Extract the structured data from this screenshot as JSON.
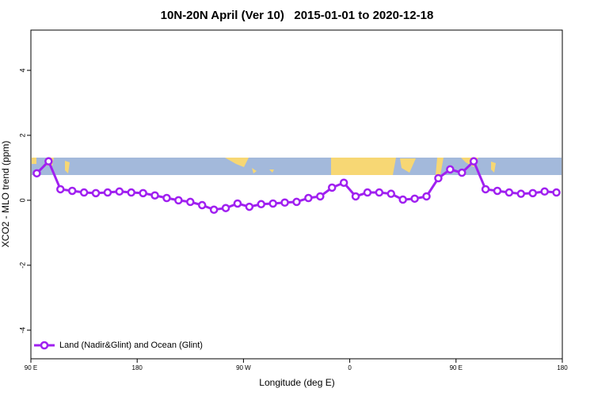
{
  "chart_data": {
    "type": "line",
    "title": "10N-20N April (Ver 10)   2015-01-01 to 2020-12-18",
    "x_label": "Longitude (deg E)",
    "y_label": "XCO2 - MLO trend (ppm)",
    "x": [
      95,
      105,
      115,
      125,
      135,
      145,
      155,
      165,
      175,
      185,
      195,
      205,
      215,
      225,
      235,
      245,
      255,
      265,
      275,
      285,
      295,
      305,
      315,
      325,
      335,
      345,
      355,
      365,
      375,
      385,
      395,
      405,
      415,
      425,
      435,
      445,
      455,
      465,
      475,
      485,
      495,
      505,
      515,
      525,
      535
    ],
    "series": [
      {
        "name": "Land (Nadir&Glint) and Ocean (Glint)",
        "color": "#a020f0",
        "values": [
          0.83,
          1.2,
          0.34,
          0.29,
          0.24,
          0.22,
          0.24,
          0.27,
          0.24,
          0.22,
          0.15,
          0.07,
          0,
          -0.05,
          -0.15,
          -0.29,
          -0.24,
          -0.1,
          -0.2,
          -0.12,
          -0.1,
          -0.07,
          -0.05,
          0.07,
          0.12,
          0.39,
          0.54,
          0.12,
          0.24,
          0.24,
          0.2,
          0.02,
          0.05,
          0.12,
          0.68,
          0.95,
          0.85,
          1.2,
          0.34,
          0.29,
          0.24,
          0.2,
          0.22,
          0.27,
          0.24
        ]
      }
    ],
    "xlim": [
      90,
      540
    ],
    "ylim": [
      -4.88,
      5.24
    ],
    "xticks": [
      {
        "value": 90,
        "label": "90 E"
      },
      180,
      {
        "value": 270,
        "label": "90 W"
      },
      {
        "value": 360,
        "label": "0"
      },
      {
        "value": 450,
        "label": "90 E"
      },
      {
        "value": 540,
        "label": "180"
      }
    ],
    "yticks": [
      -4,
      -2,
      0,
      2,
      4
    ],
    "legend": "bottom-left"
  }
}
